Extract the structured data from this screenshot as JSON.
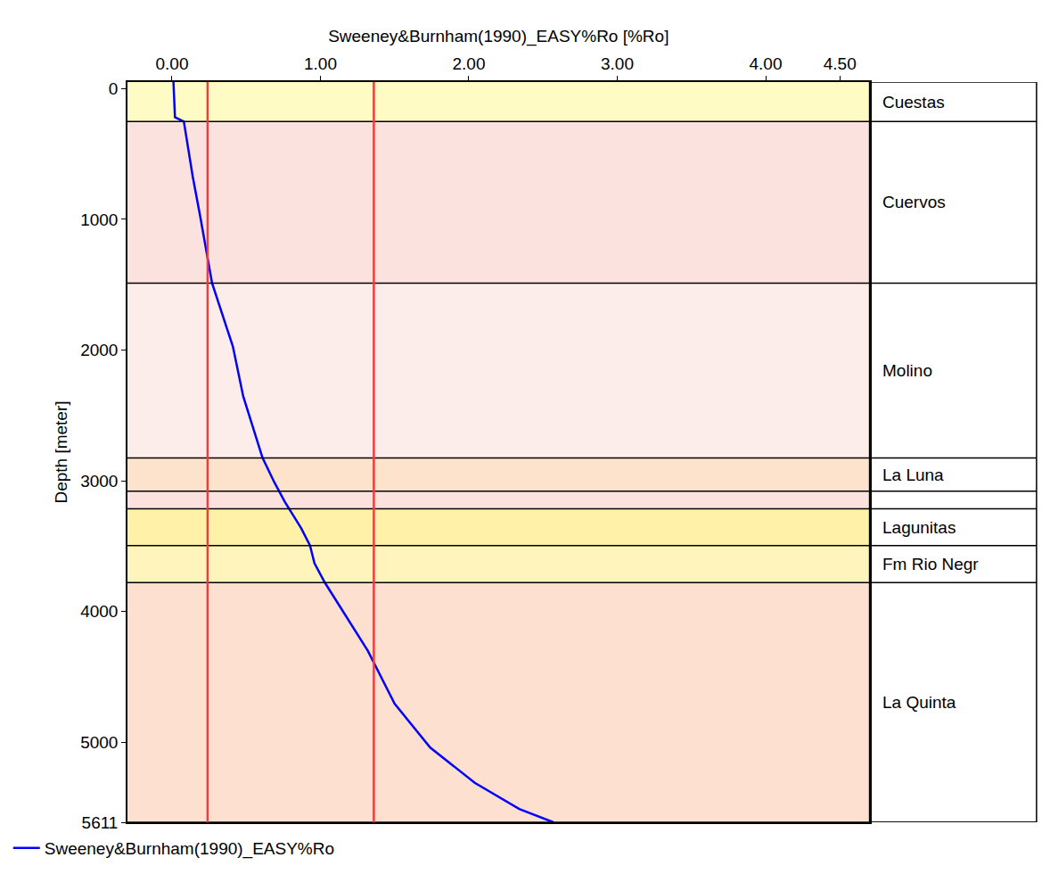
{
  "chart_data": {
    "type": "line",
    "x_label": "Sweeney&Burnham(1990)_EASY%Ro [%Ro]",
    "y_label": "Depth [meter]",
    "xlim": [
      -0.3,
      4.7
    ],
    "xticks": [
      {
        "value": 0,
        "label": "0.00"
      },
      {
        "value": 1,
        "label": "1.00"
      },
      {
        "value": 2,
        "label": "2.00"
      },
      {
        "value": 3,
        "label": "3.00"
      },
      {
        "value": 4,
        "label": "4.00"
      },
      {
        "value": 4.5,
        "label": "4.50"
      }
    ],
    "ylim": [
      -50,
      5611
    ],
    "yticks": [
      0,
      1000,
      2000,
      3000,
      4000,
      5000,
      5611
    ],
    "grid": false,
    "legend": "bottom left",
    "series": [
      {
        "name": "Sweeney&Burnham(1990)_EASY%Ro",
        "color": "#0000ff",
        "x": [
          0.01,
          0.02,
          0.08,
          0.14,
          0.19,
          0.27,
          0.41,
          0.48,
          0.61,
          0.69,
          0.76,
          0.87,
          0.93,
          0.96,
          1.03,
          1.17,
          1.32,
          1.5,
          1.74,
          2.04,
          2.34,
          2.57
        ],
        "y": [
          -50,
          219,
          252,
          675,
          977,
          1488,
          1971,
          2354,
          2824,
          3012,
          3160,
          3361,
          3495,
          3630,
          3778,
          4033,
          4301,
          4704,
          5040,
          5309,
          5510,
          5611
        ]
      }
    ],
    "vlines": [
      0.24,
      1.36
    ],
    "vline_color": "#f03c3c",
    "formations": [
      {
        "name": "Cuestas",
        "top": -50,
        "bottom": 252,
        "color": "#fffbc4"
      },
      {
        "name": "Cuervos",
        "top": 252,
        "bottom": 1488,
        "color": "#fbe2de"
      },
      {
        "name": "Molino",
        "top": 1488,
        "bottom": 2824,
        "color": "#fcecea"
      },
      {
        "name": "La Luna",
        "top": 2824,
        "bottom": 3079,
        "color": "#fde3cc"
      },
      {
        "name": null,
        "top": 3079,
        "bottom": 3213,
        "color": "#fbe2de"
      },
      {
        "name": "Lagunitas",
        "top": 3213,
        "bottom": 3495,
        "color": "#fff2a8"
      },
      {
        "name": "Fm Rio Negr",
        "top": 3495,
        "bottom": 3778,
        "color": "#fff4bc"
      },
      {
        "name": "La Quinta",
        "top": 3778,
        "bottom": 5611,
        "color": "#fde0d0"
      }
    ]
  }
}
